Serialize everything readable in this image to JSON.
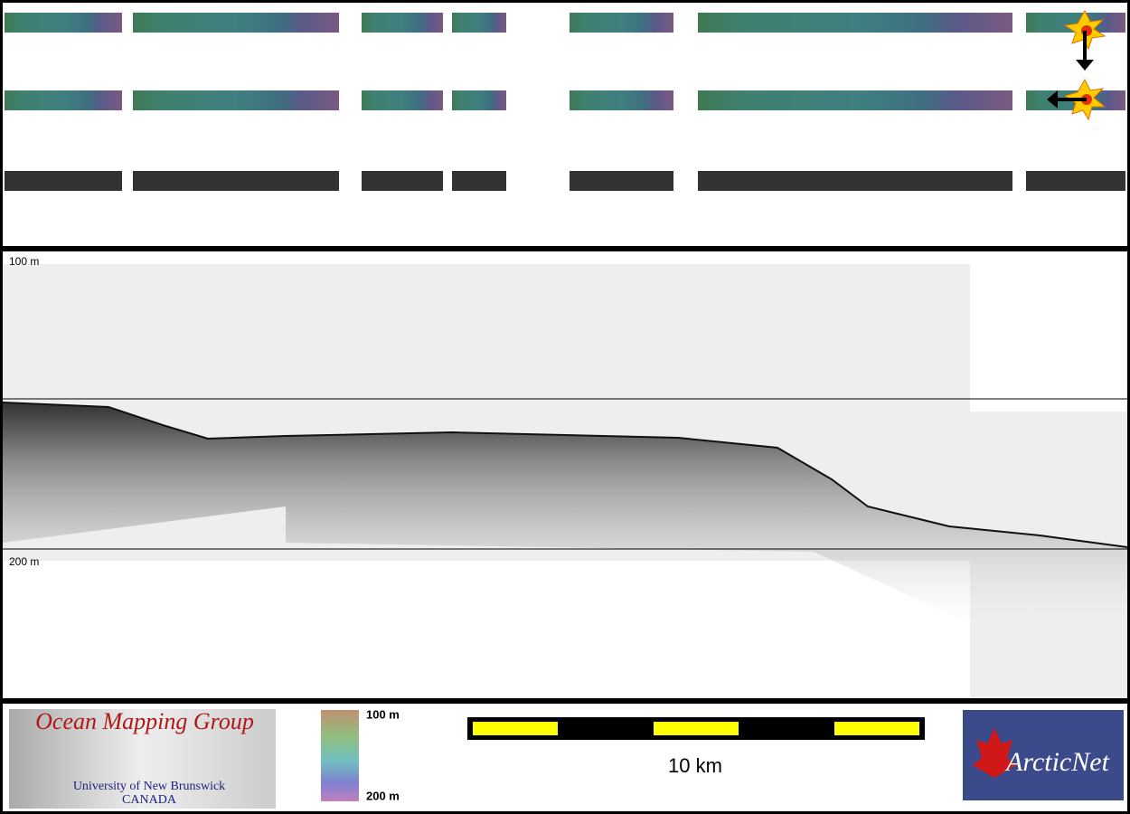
{
  "swath_panel": {
    "rows": 3
  },
  "profile_panel": {
    "upper_depth_label": "100 m",
    "lower_depth_label": "200 m"
  },
  "footer": {
    "logo": {
      "title": "Ocean Mapping Group",
      "line1": "University of New Brunswick",
      "line2": "CANADA"
    },
    "colorbar": {
      "top_label": "100 m",
      "bottom_label": "200 m"
    },
    "scale_bar": {
      "label": "10 km"
    },
    "partner_logo": {
      "text": "ArcticNet"
    }
  }
}
